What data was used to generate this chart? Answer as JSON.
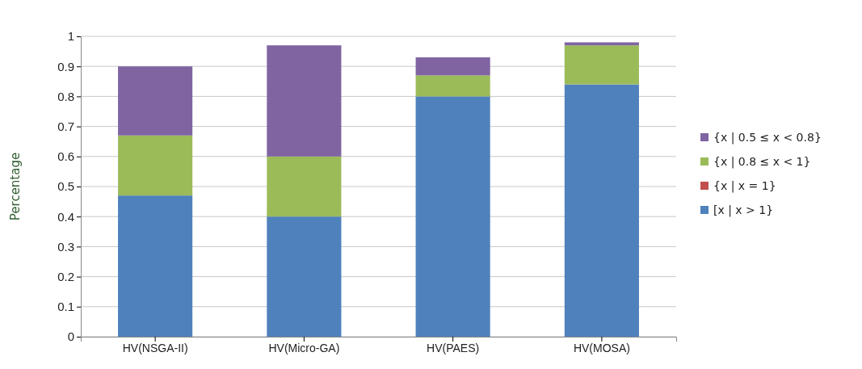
{
  "chart_data": {
    "type": "bar",
    "stacked": true,
    "ylabel": "Percentage",
    "categories": [
      "HV(NSGA-II)",
      "HV(Micro-GA)",
      "HV(PAES)",
      "HV(MOSA)"
    ],
    "series": [
      {
        "name": "[x | x > 1}",
        "color": "#4f81bd",
        "values": [
          0.47,
          0.4,
          0.8,
          0.84
        ]
      },
      {
        "name": "{x | x = 1}",
        "color": "#c0504d",
        "values": [
          0,
          0,
          0,
          0
        ]
      },
      {
        "name": "{x | 0.8 ≤ x < 1}",
        "color": "#9bbb59",
        "values": [
          0.2,
          0.2,
          0.07,
          0.13
        ]
      },
      {
        "name": "{x | 0.5 ≤ x < 0.8}",
        "color": "#8064a2",
        "values": [
          0.23,
          0.37,
          0.06,
          0.01
        ]
      }
    ],
    "ylim": [
      0,
      1
    ],
    "yticks": [
      0,
      0.1,
      0.2,
      0.3,
      0.4,
      0.5,
      0.6,
      0.7,
      0.8,
      0.9,
      1
    ],
    "grid": "y",
    "legend": "right"
  }
}
